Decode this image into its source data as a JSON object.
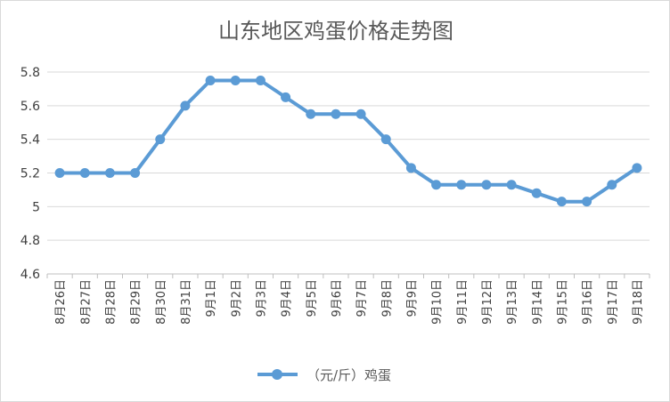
{
  "chart_data": {
    "type": "line",
    "title": "山东地区鸡蛋价格走势图",
    "xlabel": "",
    "ylabel": "",
    "categories": [
      "8月26日",
      "8月27日",
      "8月28日",
      "8月29日",
      "8月30日",
      "8月31日",
      "9月1日",
      "9月2日",
      "9月3日",
      "9月4日",
      "9月5日",
      "9月6日",
      "9月7日",
      "9月8日",
      "9月9日",
      "9月10日",
      "9月11日",
      "9月12日",
      "9月13日",
      "9月14日",
      "9月15日",
      "9月16日",
      "9月17日",
      "9月18日"
    ],
    "series": [
      {
        "name": "（元/斤）鸡蛋",
        "color": "#5b9bd5",
        "values": [
          5.2,
          5.2,
          5.2,
          5.2,
          5.4,
          5.6,
          5.75,
          5.75,
          5.75,
          5.65,
          5.55,
          5.55,
          5.55,
          5.4,
          5.23,
          5.13,
          5.13,
          5.13,
          5.13,
          5.08,
          5.03,
          5.03,
          5.13,
          5.23
        ]
      }
    ],
    "ylim": [
      4.6,
      5.8
    ],
    "yticks": [
      "4.6",
      "4.8",
      "5",
      "5.2",
      "5.4",
      "5.6",
      "5.8"
    ],
    "grid": true,
    "legend": "bottom"
  }
}
